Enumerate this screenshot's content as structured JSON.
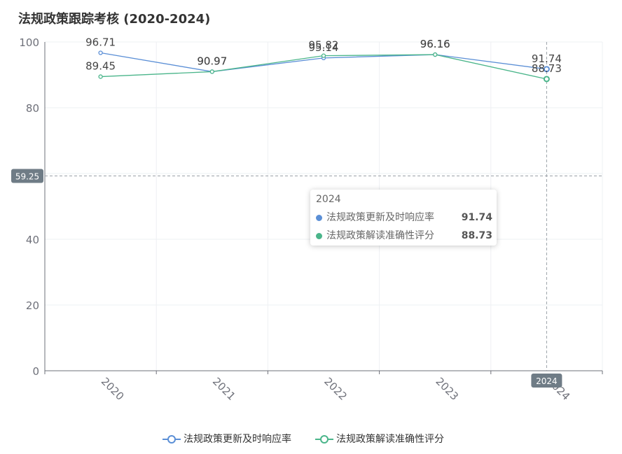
{
  "chart_data": {
    "type": "line",
    "title": "法规政策跟踪考核 (2020-2024)",
    "categories": [
      "2020",
      "2021",
      "2022",
      "2023",
      "2024"
    ],
    "ylim": [
      0,
      100
    ],
    "yticks": [
      0,
      20,
      40,
      60,
      80,
      100
    ],
    "grid": true,
    "legend_position": "bottom-center",
    "series": [
      {
        "name": "法规政策更新及时响应率",
        "values": [
          96.71,
          90.97,
          95.14,
          96.16,
          91.74
        ],
        "color": "#5b8fd6"
      },
      {
        "name": "法规政策解读准确性评分",
        "values": [
          89.45,
          90.97,
          95.82,
          96.16,
          88.73
        ],
        "color": "#4ab58a"
      }
    ],
    "data_labels_shown": {
      "series0": [
        "96.71",
        "90.97",
        "95.14",
        "96.16",
        "91.74"
      ],
      "series1": [
        "89.45",
        "90.97",
        "95.82",
        "96.16",
        "88.73"
      ]
    },
    "crosshair": {
      "y_value_label": "59.25",
      "x_value_label": "2024"
    }
  },
  "tooltip": {
    "title": "2024",
    "rows": [
      {
        "name": "法规政策更新及时响应率",
        "value": "91.74",
        "color": "#5b8fd6"
      },
      {
        "name": "法规政策解读准确性评分",
        "value": "88.73",
        "color": "#4ab58a"
      }
    ]
  },
  "legend": {
    "items": [
      {
        "label": "法规政策更新及时响应率",
        "color": "#5b8fd6"
      },
      {
        "label": "法规政策解读准确性评分",
        "color": "#4ab58a"
      }
    ]
  }
}
